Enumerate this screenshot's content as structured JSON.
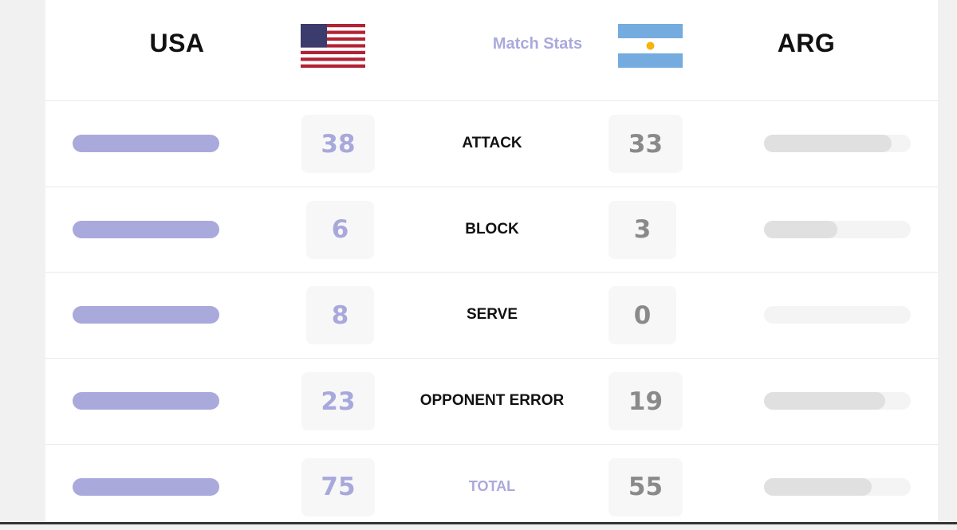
{
  "header": {
    "home": "USA",
    "title": "Match Stats",
    "away": "ARG"
  },
  "rows": [
    {
      "label": "ATTACK",
      "home": 38,
      "away": 33
    },
    {
      "label": "BLOCK",
      "home": 6,
      "away": 3
    },
    {
      "label": "SERVE",
      "home": 8,
      "away": 0
    },
    {
      "label": "OPPONENT ERROR",
      "home": 23,
      "away": 19
    }
  ],
  "total": {
    "label": "TOTAL",
    "home": 75,
    "away": 55
  }
}
